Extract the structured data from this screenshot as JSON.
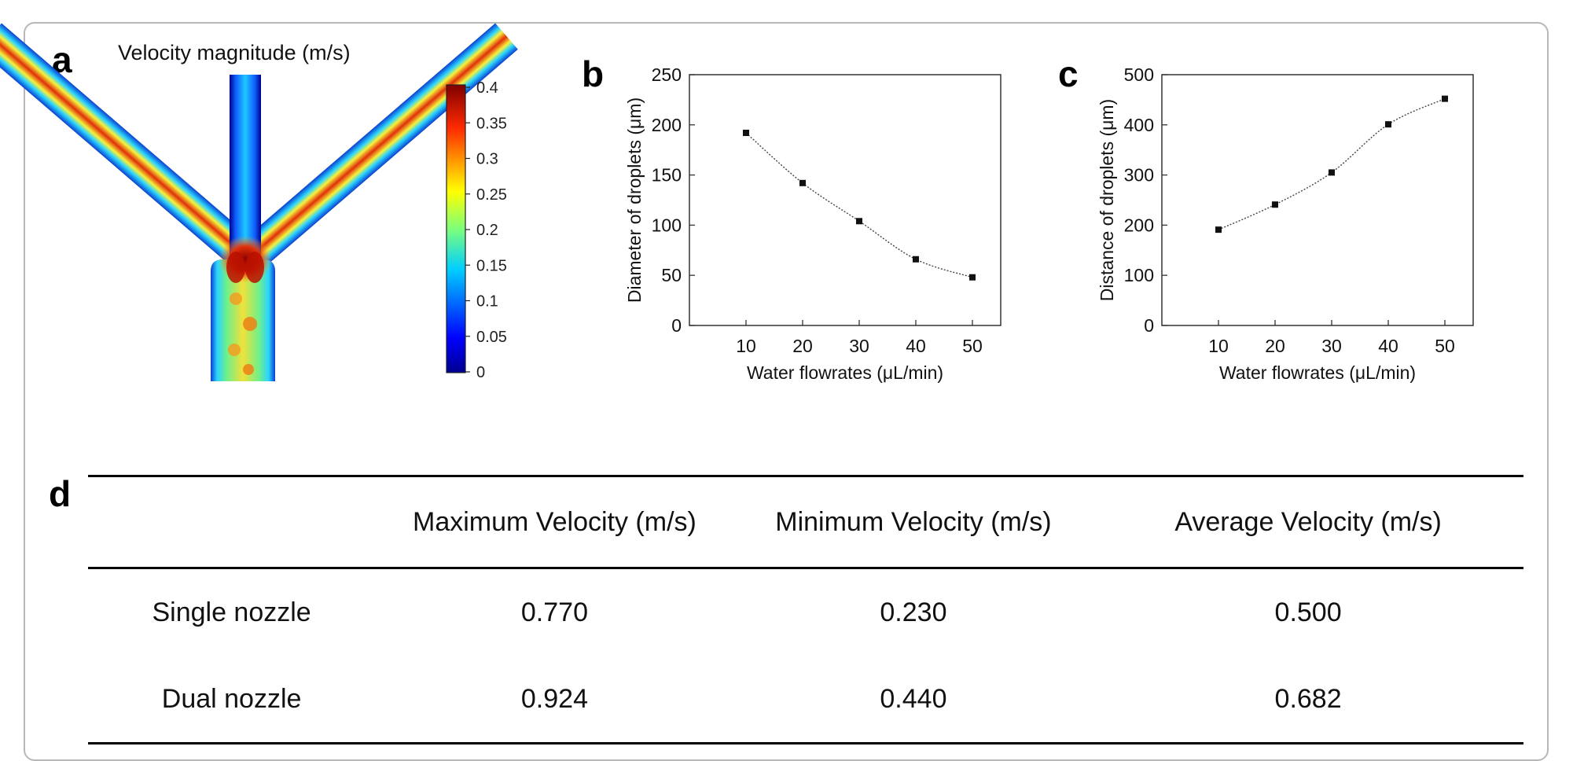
{
  "panels": {
    "a": "a",
    "b": "b",
    "c": "c",
    "d": "d"
  },
  "simulation": {
    "title": "Velocity magnitude (m/s)",
    "colormap": "jet",
    "colorbar_ticks": [
      "0.4",
      "0.35",
      "0.3",
      "0.25",
      "0.2",
      "0.15",
      "0.1",
      "0.05",
      "0"
    ],
    "colors": {
      "background": "#0a3fd0",
      "low": "#00008f",
      "mid": "#2ad4ff",
      "green": "#6ff08a",
      "yellow": "#f7f23a",
      "high": "#e0300a",
      "max": "#8a0000"
    }
  },
  "chart_data": [
    {
      "type": "line",
      "panel": "b",
      "x": [
        10,
        20,
        30,
        40,
        50
      ],
      "y": [
        192,
        142,
        104,
        66,
        48
      ],
      "xlabel": "Water flowrates (μL/min)",
      "ylabel": "Diameter of droplets (μm)",
      "xticks": [
        "10",
        "20",
        "30",
        "40",
        "50"
      ],
      "yticks": [
        "0",
        "50",
        "100",
        "150",
        "200",
        "250"
      ],
      "xlim": [
        0,
        55
      ],
      "ylim": [
        0,
        250
      ],
      "grid": false,
      "marker": "square",
      "line_style": "dotted smooth"
    },
    {
      "type": "line",
      "panel": "c",
      "x": [
        10,
        20,
        30,
        40,
        50
      ],
      "y": [
        191,
        241,
        305,
        401,
        452
      ],
      "xlabel": "Water flowrates (μL/min)",
      "ylabel": "Distance of droplets (μm)",
      "xticks": [
        "10",
        "20",
        "30",
        "40",
        "50"
      ],
      "yticks": [
        "0",
        "100",
        "200",
        "300",
        "400",
        "500"
      ],
      "xlim": [
        0,
        55
      ],
      "ylim": [
        0,
        500
      ],
      "grid": false,
      "marker": "square",
      "line_style": "dotted smooth"
    },
    {
      "type": "table",
      "panel": "d",
      "columns": [
        "",
        "Maximum Velocity (m/s)",
        "Minimum Velocity (m/s)",
        "Average Velocity (m/s)"
      ],
      "rows": [
        [
          "Single nozzle",
          "0.770",
          "0.230",
          "0.500"
        ],
        [
          "Dual nozzle",
          "0.924",
          "0.440",
          "0.682"
        ]
      ]
    }
  ]
}
